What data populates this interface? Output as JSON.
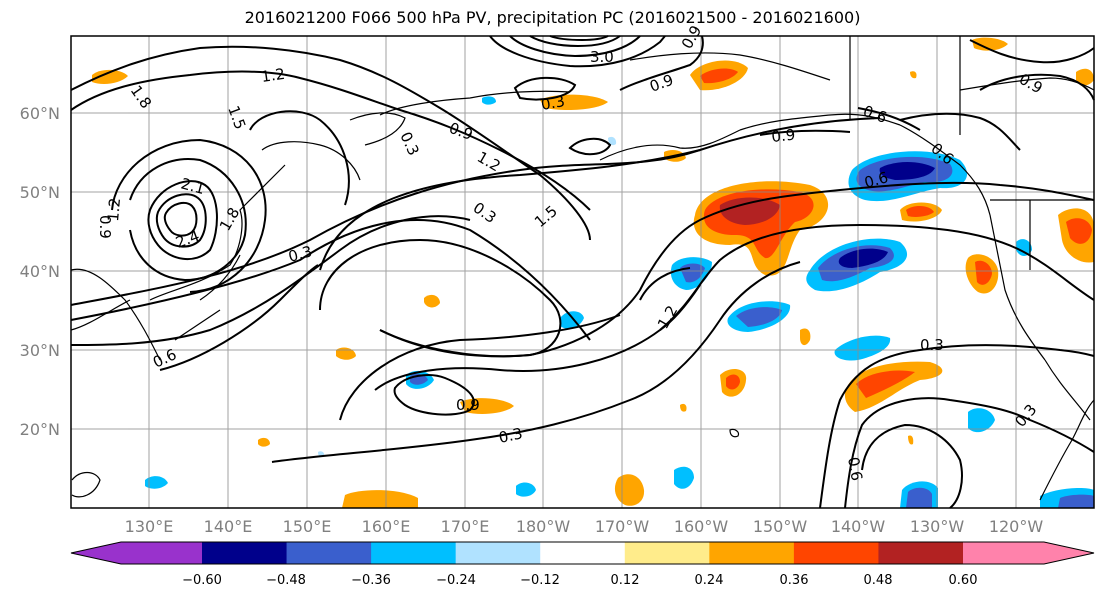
{
  "title": "2016021200 F066 500 hPa PV, precipitation PC (2016021500 - 2016021600)",
  "map": {
    "lat_labels": [
      "60°N",
      "50°N",
      "40°N",
      "30°N",
      "20°N"
    ],
    "lon_labels": [
      "130°E",
      "140°E",
      "150°E",
      "160°E",
      "170°E",
      "180°W",
      "170°W",
      "160°W",
      "150°W",
      "140°W",
      "130°W",
      "120°W"
    ],
    "contour_labels": [
      "1.2",
      "1.5",
      "1.8",
      "2.4",
      "2.1",
      "1.2",
      "0.9",
      "1.8",
      "0.3",
      "0.3",
      "0.9",
      "1.2",
      "1.5",
      "0.3",
      "0.6",
      "0.9",
      "0.3",
      "0.9",
      "0.6",
      "0.9",
      "0.6",
      "0.3",
      "0.3",
      "1.2",
      "0.3",
      "0.6",
      "0.9",
      "0.6",
      "0.9",
      "3.0"
    ]
  },
  "colorbar": {
    "labels": [
      "−0.60",
      "−0.48",
      "−0.36",
      "−0.24",
      "−0.12",
      "0.12",
      "0.24",
      "0.36",
      "0.48",
      "0.60"
    ],
    "colors": [
      "#9932cc",
      "#00008b",
      "#3a5fcd",
      "#00bfff",
      "#b0e2ff",
      "#ffffff",
      "#ffec8b",
      "#ffa500",
      "#ff4500",
      "#b22222",
      "#ff82ab"
    ]
  }
}
